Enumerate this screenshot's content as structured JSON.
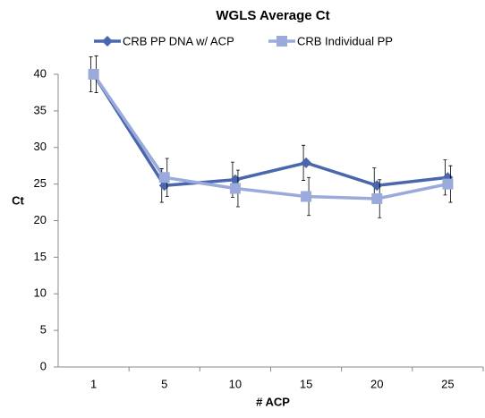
{
  "chart_data": {
    "type": "line",
    "title": "WGLS Average Ct",
    "x_label": "# ACP",
    "y_label": "Ct",
    "categories": [
      "1",
      "5",
      "10",
      "15",
      "20",
      "25"
    ],
    "series": [
      {
        "name": "CRB PP DNA w/ ACP",
        "color": "#4a66ac",
        "marker": "diamond",
        "values": [
          40,
          24.8,
          25.6,
          27.9,
          24.8,
          25.9
        ],
        "errors": [
          2.4,
          2.3,
          2.4,
          2.4,
          2.4,
          2.4
        ]
      },
      {
        "name": "CRB Individual PP",
        "color": "#9aabdb",
        "marker": "square",
        "values": [
          40,
          25.9,
          24.4,
          23.3,
          23.0,
          25.0
        ],
        "errors": [
          2.5,
          2.6,
          2.5,
          2.6,
          2.6,
          2.5
        ]
      }
    ],
    "ylim": [
      0,
      40
    ],
    "yticks": [
      0,
      5,
      10,
      15,
      20,
      25,
      30,
      35,
      40
    ],
    "grid": false,
    "legend": "top"
  }
}
